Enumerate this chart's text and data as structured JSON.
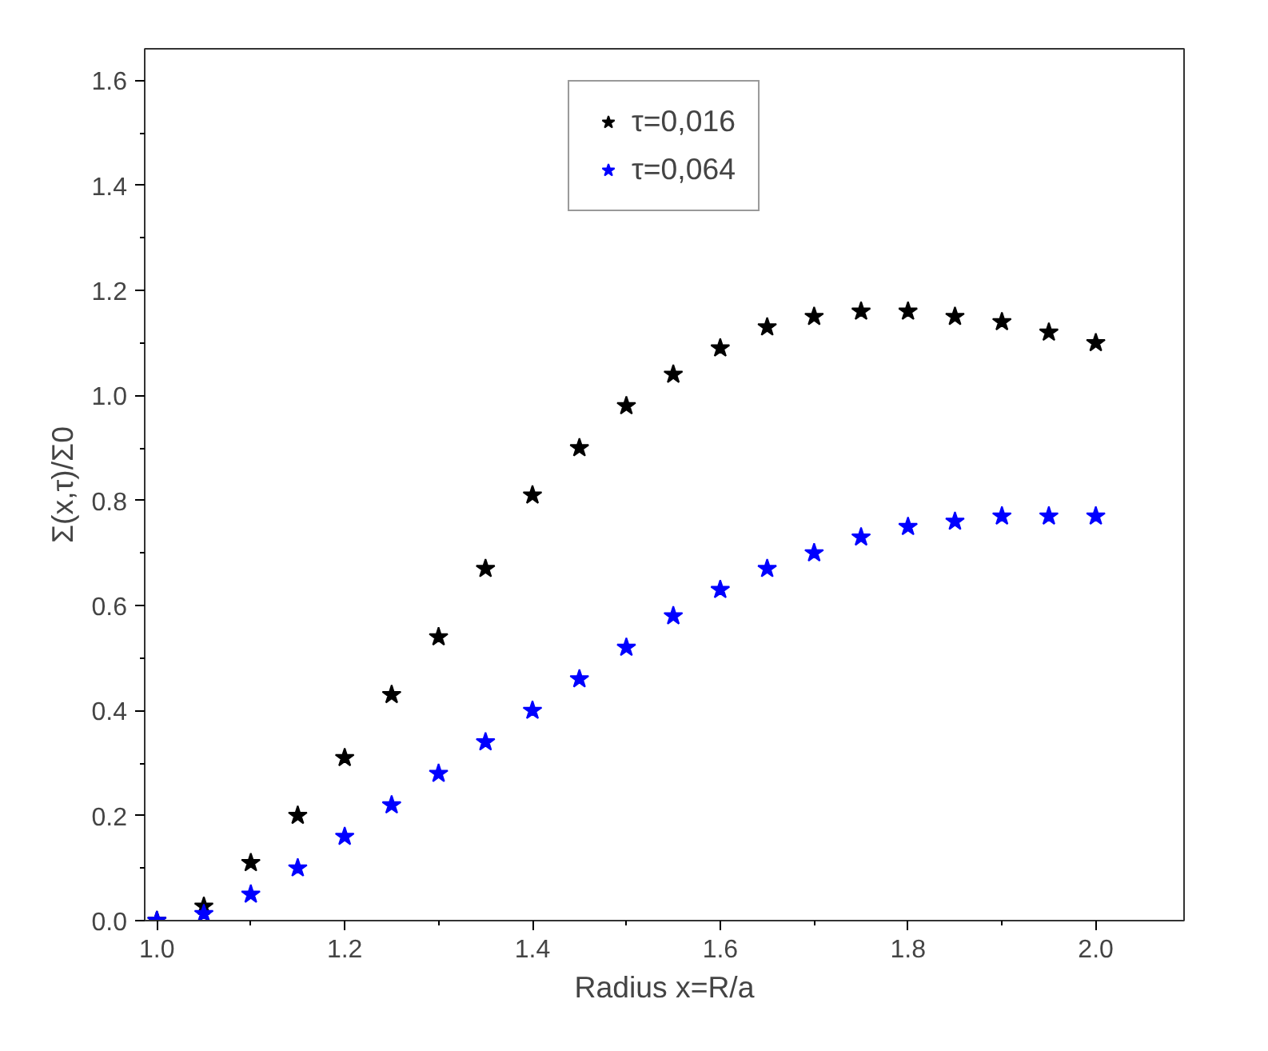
{
  "chart_data": {
    "type": "scatter",
    "xlabel": "Radius x=R/a",
    "ylabel": "Σ(x,τ)/Σ0",
    "x": [
      1.0,
      1.05,
      1.1,
      1.15,
      1.2,
      1.25,
      1.3,
      1.35,
      1.4,
      1.45,
      1.5,
      1.55,
      1.6,
      1.65,
      1.7,
      1.75,
      1.8,
      1.85,
      1.9,
      1.95,
      2.0
    ],
    "series": [
      {
        "name": "τ=0,016",
        "color": "#000000",
        "values": [
          0.0,
          0.027,
          0.11,
          0.2,
          0.31,
          0.43,
          0.54,
          0.67,
          0.81,
          0.9,
          0.98,
          1.04,
          1.09,
          1.13,
          1.15,
          1.16,
          1.16,
          1.15,
          1.14,
          1.12,
          1.1
        ]
      },
      {
        "name": "τ=0,064",
        "color": "#0000ff",
        "values": [
          0.0,
          0.013,
          0.05,
          0.1,
          0.16,
          0.22,
          0.28,
          0.34,
          0.4,
          0.46,
          0.52,
          0.58,
          0.63,
          0.67,
          0.7,
          0.73,
          0.75,
          0.76,
          0.77,
          0.77,
          0.77
        ]
      }
    ],
    "xlim": [
      0.987,
      2.094
    ],
    "ylim": [
      0.0,
      1.66
    ],
    "xticks": [
      {
        "value": 1,
        "label": "1.0"
      },
      1.2,
      1.4,
      1.6,
      1.8,
      {
        "value": 2,
        "label": "2.0"
      }
    ],
    "yticks": [
      {
        "value": 0,
        "label": "0.0"
      },
      0.2,
      0.4,
      0.6,
      0.8,
      {
        "value": 1,
        "label": "1.0"
      },
      1.2,
      1.4,
      1.6
    ],
    "grid": false,
    "legend": "top",
    "marker": "star"
  }
}
